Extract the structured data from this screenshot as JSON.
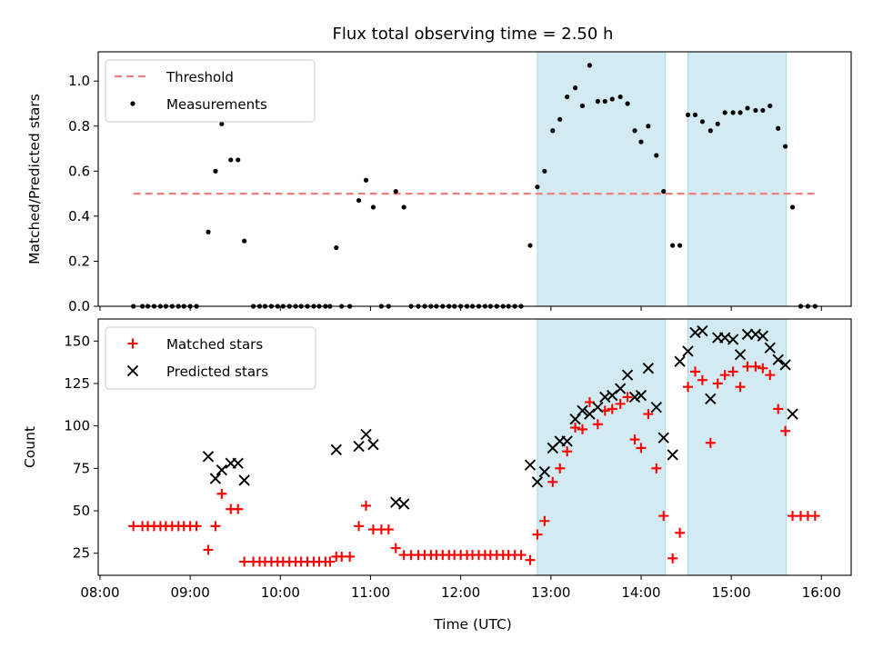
{
  "chart_data": {
    "title": "Flux total observing time = 2.50 h",
    "shared_x": {
      "label": "Time (UTC)",
      "unit": "hours UTC",
      "lim": [
        7.98,
        16.33
      ],
      "ticks": [
        8,
        9,
        10,
        11,
        12,
        13,
        14,
        15,
        16
      ],
      "tick_labels": [
        "08:00",
        "09:00",
        "10:00",
        "11:00",
        "12:00",
        "13:00",
        "14:00",
        "15:00",
        "16:00"
      ]
    },
    "observing_windows": [
      [
        12.85,
        14.27
      ],
      [
        14.52,
        15.61
      ]
    ],
    "window_color": "#add8e6",
    "panels": [
      {
        "type": "scatter",
        "ylabel": "Matched/Predicted stars",
        "ylim": [
          0,
          1.13
        ],
        "yticks": [
          0.0,
          0.2,
          0.4,
          0.6,
          0.8,
          1.0
        ],
        "ytick_labels": [
          "0.0",
          "0.2",
          "0.4",
          "0.6",
          "0.8",
          "1.0"
        ],
        "legend_position": "upper left",
        "threshold": {
          "name": "Threshold",
          "value": 0.5,
          "x_range": [
            8.37,
            15.95
          ],
          "color": "#f08080"
        },
        "series": [
          {
            "name": "Measurements",
            "color": "#000000",
            "marker": "dot",
            "x": [
              8.37,
              8.47,
              8.53,
              8.6,
              8.67,
              8.73,
              8.8,
              8.87,
              8.93,
              9.0,
              9.07,
              9.2,
              9.28,
              9.35,
              9.45,
              9.53,
              9.6,
              9.7,
              9.77,
              9.83,
              9.9,
              9.97,
              10.03,
              10.1,
              10.17,
              10.23,
              10.3,
              10.37,
              10.43,
              10.5,
              10.55,
              10.62,
              10.68,
              10.77,
              10.87,
              10.95,
              11.03,
              11.12,
              11.2,
              11.28,
              11.37,
              11.45,
              11.53,
              11.6,
              11.67,
              11.73,
              11.8,
              11.87,
              11.93,
              12.0,
              12.07,
              12.13,
              12.2,
              12.27,
              12.33,
              12.4,
              12.47,
              12.53,
              12.6,
              12.67,
              12.77,
              12.85,
              12.93,
              13.02,
              13.1,
              13.18,
              13.27,
              13.35,
              13.43,
              13.52,
              13.6,
              13.68,
              13.77,
              13.85,
              13.93,
              14.0,
              14.08,
              14.17,
              14.25,
              14.35,
              14.43,
              14.52,
              14.6,
              14.68,
              14.77,
              14.85,
              14.93,
              15.02,
              15.1,
              15.18,
              15.27,
              15.35,
              15.43,
              15.52,
              15.6,
              15.68,
              15.77,
              15.85,
              15.93
            ],
            "y": [
              0.0,
              0.0,
              0.0,
              0.0,
              0.0,
              0.0,
              0.0,
              0.0,
              0.0,
              0.0,
              0.0,
              0.33,
              0.6,
              0.81,
              0.65,
              0.65,
              0.29,
              0.0,
              0.0,
              0.0,
              0.0,
              0.0,
              0.0,
              0.0,
              0.0,
              0.0,
              0.0,
              0.0,
              0.0,
              0.0,
              0.0,
              0.26,
              0.0,
              0.0,
              0.47,
              0.56,
              0.44,
              0.0,
              0.0,
              0.51,
              0.44,
              0.0,
              0.0,
              0.0,
              0.0,
              0.0,
              0.0,
              0.0,
              0.0,
              0.0,
              0.0,
              0.0,
              0.0,
              0.0,
              0.0,
              0.0,
              0.0,
              0.0,
              0.0,
              0.0,
              0.27,
              0.53,
              0.6,
              0.78,
              0.83,
              0.93,
              0.97,
              0.89,
              1.07,
              0.91,
              0.91,
              0.92,
              0.93,
              0.9,
              0.78,
              0.73,
              0.8,
              0.67,
              0.51,
              0.27,
              0.27,
              0.85,
              0.85,
              0.82,
              0.78,
              0.81,
              0.86,
              0.86,
              0.86,
              0.88,
              0.87,
              0.87,
              0.89,
              0.79,
              0.71,
              0.44,
              0.0,
              0.0,
              0.0
            ]
          }
        ]
      },
      {
        "type": "scatter",
        "ylabel": "Count",
        "ylim": [
          12,
          163
        ],
        "yticks": [
          25,
          50,
          75,
          100,
          125,
          150
        ],
        "ytick_labels": [
          "25",
          "50",
          "75",
          "100",
          "125",
          "150"
        ],
        "legend_position": "upper left",
        "series": [
          {
            "name": "Matched stars",
            "color": "#ff0000",
            "marker": "plus",
            "x": [
              8.37,
              8.47,
              8.53,
              8.6,
              8.67,
              8.73,
              8.8,
              8.87,
              8.93,
              9.0,
              9.07,
              9.2,
              9.28,
              9.35,
              9.45,
              9.53,
              9.6,
              9.7,
              9.77,
              9.83,
              9.9,
              9.97,
              10.03,
              10.1,
              10.17,
              10.23,
              10.3,
              10.37,
              10.43,
              10.5,
              10.55,
              10.62,
              10.68,
              10.77,
              10.87,
              10.95,
              11.03,
              11.12,
              11.2,
              11.28,
              11.37,
              11.45,
              11.53,
              11.6,
              11.67,
              11.73,
              11.8,
              11.87,
              11.93,
              12.0,
              12.07,
              12.13,
              12.2,
              12.27,
              12.33,
              12.4,
              12.47,
              12.53,
              12.6,
              12.67,
              12.77,
              12.85,
              12.93,
              13.02,
              13.1,
              13.18,
              13.27,
              13.35,
              13.43,
              13.52,
              13.6,
              13.68,
              13.77,
              13.85,
              13.93,
              14.0,
              14.08,
              14.17,
              14.25,
              14.35,
              14.43,
              14.52,
              14.6,
              14.68,
              14.77,
              14.85,
              14.93,
              15.02,
              15.1,
              15.18,
              15.27,
              15.35,
              15.43,
              15.52,
              15.6,
              15.68,
              15.77,
              15.85,
              15.93
            ],
            "y": [
              41,
              41,
              41,
              41,
              41,
              41,
              41,
              41,
              41,
              41,
              41,
              27,
              41,
              60,
              51,
              51,
              20,
              20,
              20,
              20,
              20,
              20,
              20,
              20,
              20,
              20,
              20,
              20,
              20,
              20,
              20,
              23,
              23,
              23,
              41,
              53,
              39,
              39,
              39,
              28,
              24,
              24,
              24,
              24,
              24,
              24,
              24,
              24,
              24,
              24,
              24,
              24,
              24,
              24,
              24,
              24,
              24,
              24,
              24,
              24,
              21,
              36,
              44,
              67,
              75,
              85,
              99,
              98,
              114,
              101,
              109,
              110,
              113,
              117,
              92,
              87,
              107,
              75,
              47,
              22,
              37,
              123,
              132,
              127,
              90,
              125,
              130,
              132,
              123,
              135,
              135,
              134,
              130,
              110,
              97,
              47,
              47,
              47,
              47
            ]
          },
          {
            "name": "Predicted stars",
            "color": "#000000",
            "marker": "x",
            "x": [
              9.2,
              9.28,
              9.35,
              9.45,
              9.53,
              9.6,
              10.62,
              10.87,
              10.95,
              11.03,
              11.28,
              11.37,
              12.77,
              12.85,
              12.93,
              13.02,
              13.1,
              13.18,
              13.27,
              13.35,
              13.43,
              13.52,
              13.6,
              13.68,
              13.77,
              13.85,
              13.93,
              14.0,
              14.08,
              14.17,
              14.25,
              14.35,
              14.43,
              14.52,
              14.6,
              14.68,
              14.77,
              14.85,
              14.93,
              15.02,
              15.1,
              15.18,
              15.27,
              15.35,
              15.43,
              15.52,
              15.6,
              15.68
            ],
            "y": [
              82,
              69,
              74,
              78,
              78,
              68,
              86,
              88,
              95,
              89,
              55,
              54,
              77,
              67,
              73,
              87,
              91,
              91,
              104,
              109,
              107,
              111,
              117,
              118,
              122,
              130,
              117,
              118,
              134,
              111,
              93,
              83,
              138,
              144,
              155,
              156,
              116,
              152,
              152,
              151,
              142,
              154,
              154,
              153,
              146,
              139,
              136,
              107
            ]
          }
        ]
      }
    ]
  }
}
